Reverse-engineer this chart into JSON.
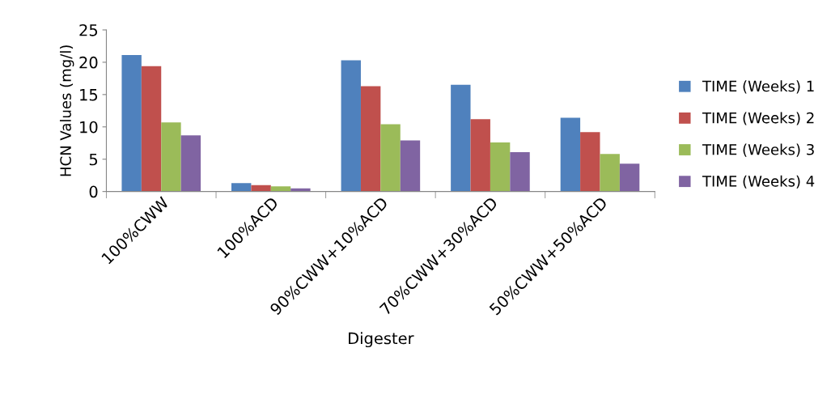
{
  "chart_data": {
    "type": "bar",
    "xlabel": "Digester",
    "ylabel": "HCN Values (mg/l)",
    "categories": [
      "100%CWW",
      "100%ACD",
      "90%CWW+10%ACD",
      "70%CWW+30%ACD",
      "50%CWW+50%ACD"
    ],
    "series": [
      {
        "name": "TIME (Weeks) 1",
        "color": "#4f81bd",
        "values": [
          21.1,
          1.3,
          20.3,
          16.5,
          11.4
        ]
      },
      {
        "name": "TIME (Weeks) 2",
        "color": "#c0504d",
        "values": [
          19.4,
          1.0,
          16.3,
          11.2,
          9.2
        ]
      },
      {
        "name": "TIME (Weeks) 3",
        "color": "#9bbb59",
        "values": [
          10.7,
          0.8,
          10.4,
          7.6,
          5.8
        ]
      },
      {
        "name": "TIME (Weeks) 4",
        "color": "#8064a2",
        "values": [
          8.7,
          0.5,
          7.9,
          6.1,
          4.3
        ]
      }
    ],
    "ylim": [
      0,
      25
    ],
    "yticks": [
      0,
      5,
      10,
      15,
      20,
      25
    ],
    "grid": false,
    "legend": "right"
  }
}
